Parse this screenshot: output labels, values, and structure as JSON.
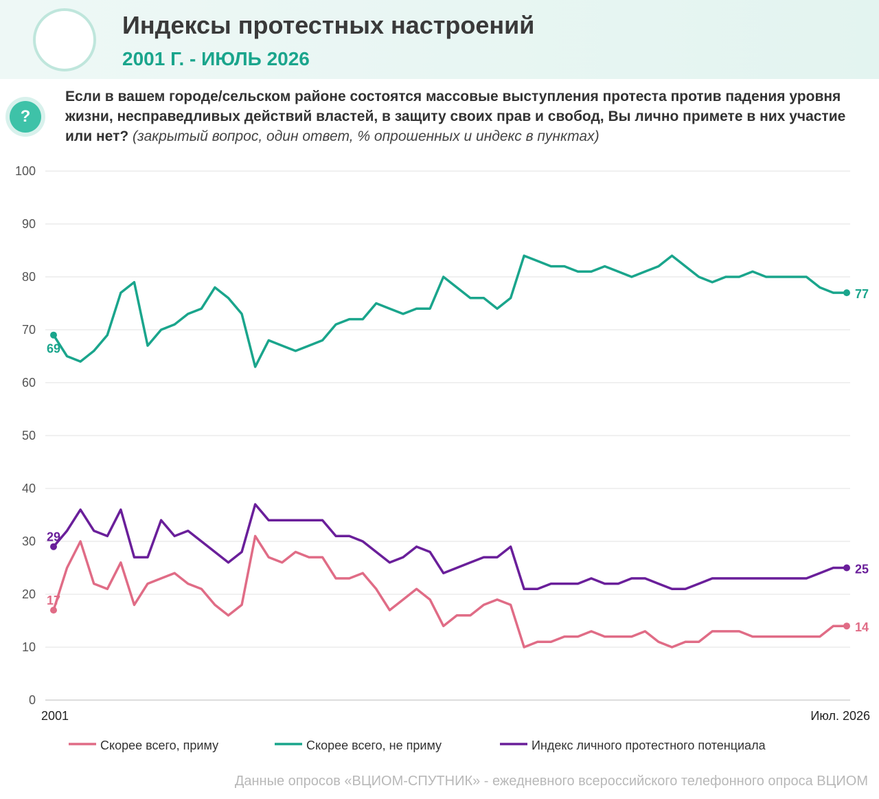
{
  "header": {
    "title": "Индексы протестных настроений",
    "subtitle": "2001 Г. - ИЮЛЬ 2026"
  },
  "question": {
    "icon": "?",
    "text": "Если в вашем городе/сельском районе состоятся массовые выступления протеста против падения уровня жизни, несправедливых действий властей, в защиту своих прав и свобод, Вы лично примете в них участие или нет?",
    "note": "(закрытый вопрос, один ответ, % опрошенных и индекс в пунктах)"
  },
  "chart_data": {
    "type": "line",
    "categories": [
      "2001",
      null,
      null,
      null,
      null,
      null,
      null,
      null,
      null,
      null,
      null,
      null,
      null,
      null,
      null,
      null,
      null,
      null,
      null,
      null,
      null,
      null,
      null,
      null,
      null,
      null,
      null,
      null,
      null,
      null,
      null,
      null,
      null,
      null,
      null,
      null,
      null,
      null,
      null,
      null,
      null,
      null,
      null,
      null,
      null,
      null,
      null,
      null,
      null,
      null,
      null,
      null,
      null,
      null,
      null,
      null,
      null,
      null,
      null,
      "Июл. 2026"
    ],
    "series": [
      {
        "name": "Скорее всего, приму",
        "color": "#e06c86",
        "values": [
          17,
          25,
          30,
          22,
          21,
          26,
          18,
          22,
          23,
          24,
          22,
          21,
          18,
          16,
          18,
          31,
          27,
          26,
          28,
          27,
          27,
          23,
          23,
          24,
          21,
          17,
          19,
          21,
          19,
          14,
          16,
          16,
          18,
          19,
          18,
          10,
          11,
          11,
          12,
          12,
          13,
          12,
          12,
          12,
          13,
          11,
          10,
          11,
          11,
          13,
          13,
          13,
          12,
          12,
          12,
          12,
          12,
          12,
          14,
          14
        ]
      },
      {
        "name": "Скорее всего, не приму",
        "color": "#1aa58c",
        "values": [
          69,
          65,
          64,
          66,
          69,
          77,
          79,
          67,
          70,
          71,
          73,
          74,
          78,
          76,
          73,
          63,
          68,
          67,
          66,
          67,
          68,
          71,
          72,
          72,
          75,
          74,
          73,
          74,
          74,
          80,
          78,
          76,
          76,
          74,
          76,
          84,
          83,
          82,
          82,
          81,
          81,
          82,
          81,
          80,
          81,
          82,
          84,
          82,
          80,
          79,
          80,
          80,
          81,
          80,
          80,
          80,
          80,
          78,
          77,
          77
        ]
      },
      {
        "name": "Индекс личного протестного потенциала",
        "color": "#6a1f9a",
        "values": [
          29,
          32,
          36,
          32,
          31,
          36,
          27,
          27,
          34,
          31,
          32,
          30,
          28,
          26,
          28,
          37,
          34,
          34,
          34,
          34,
          34,
          31,
          31,
          30,
          28,
          26,
          27,
          29,
          28,
          24,
          25,
          26,
          27,
          27,
          29,
          21,
          21,
          22,
          22,
          22,
          23,
          22,
          22,
          23,
          23,
          22,
          21,
          21,
          22,
          23,
          23,
          23,
          23,
          23,
          23,
          23,
          23,
          24,
          25,
          25
        ]
      }
    ],
    "ylim": [
      0,
      100
    ],
    "yticks": [
      0,
      10,
      20,
      30,
      40,
      50,
      60,
      70,
      80,
      90,
      100
    ],
    "grid": true
  },
  "footer": "Данные опросов «ВЦИОМ-СПУТНИК» - ежедневного всероссийского телефонного опроса ВЦИОМ"
}
